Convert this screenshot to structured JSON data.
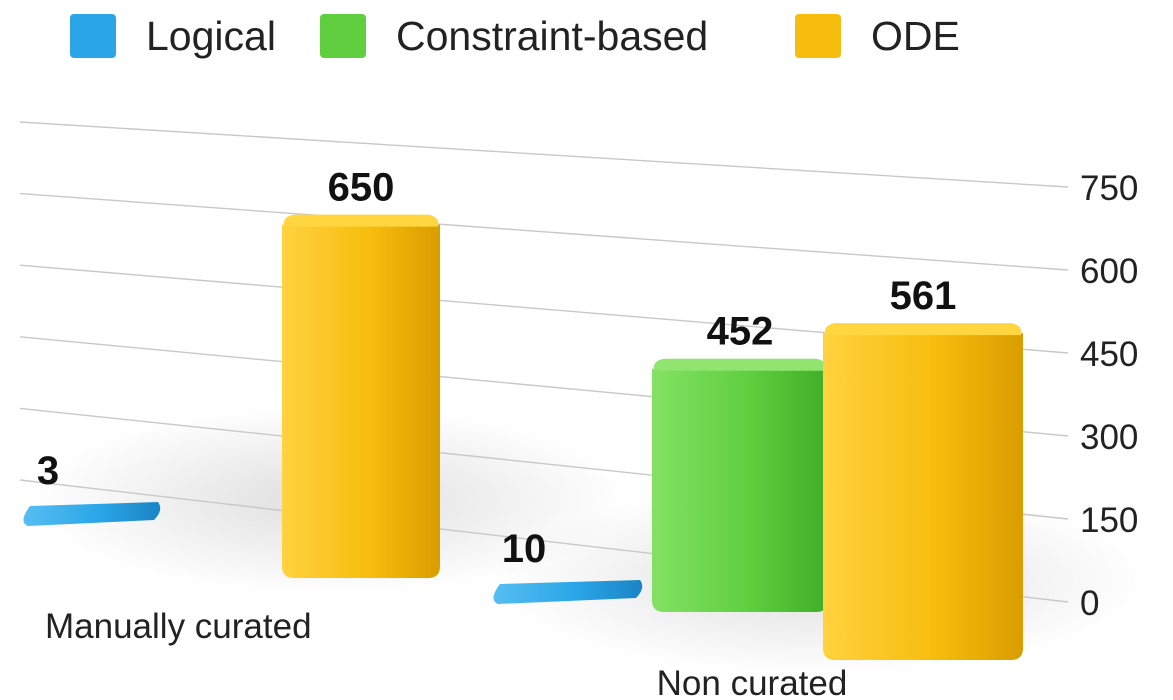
{
  "colors": {
    "logical": "#2aa6e8",
    "constraint": "#5fcf3f",
    "ode": "#f7bd0e",
    "text": "#111111",
    "grid": "#c8c8c8"
  },
  "chart_data": {
    "type": "bar",
    "title": "",
    "xlabel": "",
    "ylabel": "",
    "categories": [
      "Manually curated",
      "Non curated"
    ],
    "series": [
      {
        "name": "Logical",
        "values": [
          3,
          10
        ]
      },
      {
        "name": "Constraint-based",
        "values": [
          0,
          452
        ]
      },
      {
        "name": "ODE",
        "values": [
          650,
          561
        ]
      }
    ],
    "y_ticks": [
      "0",
      "150",
      "300",
      "450",
      "600",
      "750"
    ],
    "ylim": [
      0,
      750
    ],
    "data_labels": [
      {
        "category": "Manually curated",
        "series": "Logical",
        "label": "3"
      },
      {
        "category": "Manually curated",
        "series": "ODE",
        "label": "650"
      },
      {
        "category": "Non curated",
        "series": "Logical",
        "label": "10"
      },
      {
        "category": "Non curated",
        "series": "Constraint-based",
        "label": "452"
      },
      {
        "category": "Non curated",
        "series": "ODE",
        "label": "561"
      }
    ],
    "grid": true,
    "legend_position": "top",
    "style": "3d-perspective"
  }
}
